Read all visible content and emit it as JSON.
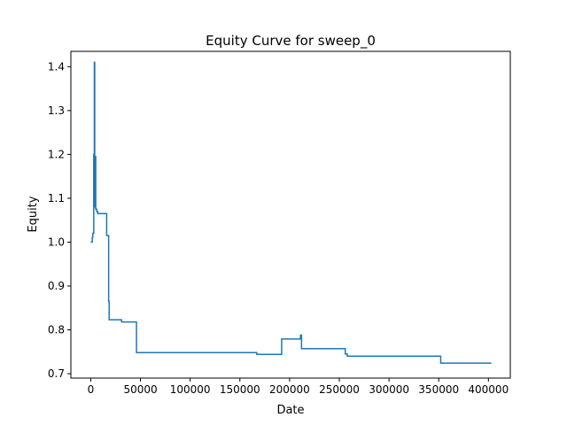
{
  "chart_data": {
    "type": "line",
    "title": "Equity Curve for sweep_0",
    "xlabel": "Date",
    "ylabel": "Equity",
    "xlim": [
      -20000,
      422000
    ],
    "ylim": [
      0.69,
      1.435
    ],
    "grid": false,
    "legend": "none",
    "x_ticks": [
      0,
      50000,
      100000,
      150000,
      200000,
      250000,
      300000,
      350000,
      400000
    ],
    "x_tick_labels": [
      "0",
      "50000",
      "100000",
      "150000",
      "200000",
      "250000",
      "300000",
      "350000",
      "400000"
    ],
    "y_ticks": [
      0.7,
      0.8,
      0.9,
      1.0,
      1.1,
      1.2,
      1.3,
      1.4
    ],
    "y_tick_labels": [
      "0.7",
      "0.8",
      "0.9",
      "1.0",
      "1.1",
      "1.2",
      "1.3",
      "1.4"
    ],
    "series": [
      {
        "color": "#1f77b4",
        "x": [
          0,
          1500,
          1500,
          2000,
          2000,
          3000,
          3000,
          3600,
          3600,
          4000,
          4000,
          4200,
          4200,
          4500,
          4500,
          5000,
          5000,
          6000,
          6000,
          7000,
          7000,
          16000,
          16000,
          18000,
          18000,
          18500,
          18500,
          31000,
          31000,
          46000,
          46000,
          167000,
          167000,
          192000,
          192000,
          211000,
          211000,
          212000,
          212000,
          256000,
          256000,
          258000,
          258000,
          352000,
          352000,
          403000
        ],
        "y": [
          1.0,
          1.0,
          1.01,
          1.01,
          1.02,
          1.02,
          1.2,
          1.2,
          1.41,
          1.41,
          1.09,
          1.09,
          1.08,
          1.08,
          1.195,
          1.195,
          1.075,
          1.075,
          1.07,
          1.07,
          1.065,
          1.065,
          1.015,
          1.015,
          0.865,
          0.865,
          0.823,
          0.823,
          0.818,
          0.818,
          0.748,
          0.748,
          0.744,
          0.744,
          0.779,
          0.779,
          0.788,
          0.788,
          0.757,
          0.757,
          0.745,
          0.745,
          0.74,
          0.74,
          0.724,
          0.724
        ]
      }
    ]
  }
}
